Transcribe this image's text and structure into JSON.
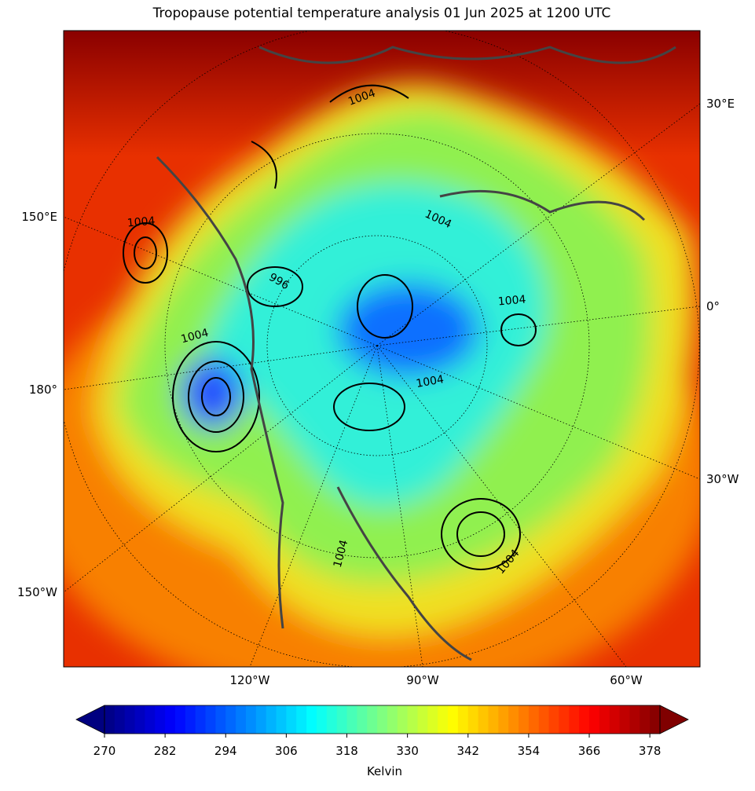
{
  "title": "Tropopause potential temperature analysis 01 Jun 2025 at 1200 UTC",
  "map": {
    "left_labels": [
      "150°E",
      "180°",
      "150°W"
    ],
    "right_labels": [
      "30°E",
      "0°",
      "30°W"
    ],
    "bottom_labels": [
      "120°W",
      "90°W",
      "60°W"
    ],
    "contour_labels": [
      "1004",
      "1004",
      "1004",
      "1004",
      "1004",
      "1004",
      "1004",
      "1004",
      "996"
    ]
  },
  "colorbar": {
    "cmap": "jet",
    "lim": [
      270,
      380
    ],
    "step": 2,
    "extend": "both",
    "ticks": [
      270,
      282,
      294,
      306,
      318,
      330,
      342,
      354,
      366,
      378
    ],
    "label": "Kelvin"
  }
}
